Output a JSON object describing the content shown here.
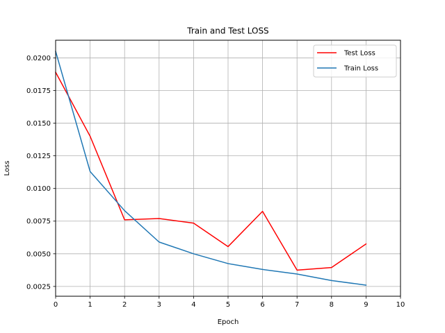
{
  "chart_data": {
    "type": "line",
    "title": "Train and Test LOSS",
    "xlabel": "Epoch",
    "ylabel": "Loss",
    "xlim": [
      0,
      10
    ],
    "ylim": [
      0.00175,
      0.02135
    ],
    "x_ticks": [
      0,
      1,
      2,
      3,
      4,
      5,
      6,
      7,
      8,
      9,
      10
    ],
    "x_tick_labels": [
      "0",
      "1",
      "2",
      "3",
      "4",
      "5",
      "6",
      "7",
      "8",
      "9",
      "10"
    ],
    "y_ticks": [
      0.0025,
      0.005,
      0.0075,
      0.01,
      0.0125,
      0.015,
      0.0175,
      0.02
    ],
    "y_tick_labels": [
      "0.0025",
      "0.0050",
      "0.0075",
      "0.0100",
      "0.0125",
      "0.0150",
      "0.0175",
      "0.0200"
    ],
    "grid": true,
    "legend_position": "top-right",
    "x": [
      0,
      1,
      2,
      3,
      4,
      5,
      6,
      7,
      8,
      9
    ],
    "series": [
      {
        "name": "Test Loss",
        "color": "#ff0000",
        "values": [
          0.0189,
          0.014,
          0.0076,
          0.0077,
          0.00735,
          0.00555,
          0.00825,
          0.00375,
          0.00395,
          0.00575
        ]
      },
      {
        "name": "Train Loss",
        "color": "#1f77b4",
        "values": [
          0.0205,
          0.0113,
          0.0083,
          0.0059,
          0.005,
          0.00425,
          0.0038,
          0.00345,
          0.00295,
          0.0026
        ]
      }
    ]
  }
}
